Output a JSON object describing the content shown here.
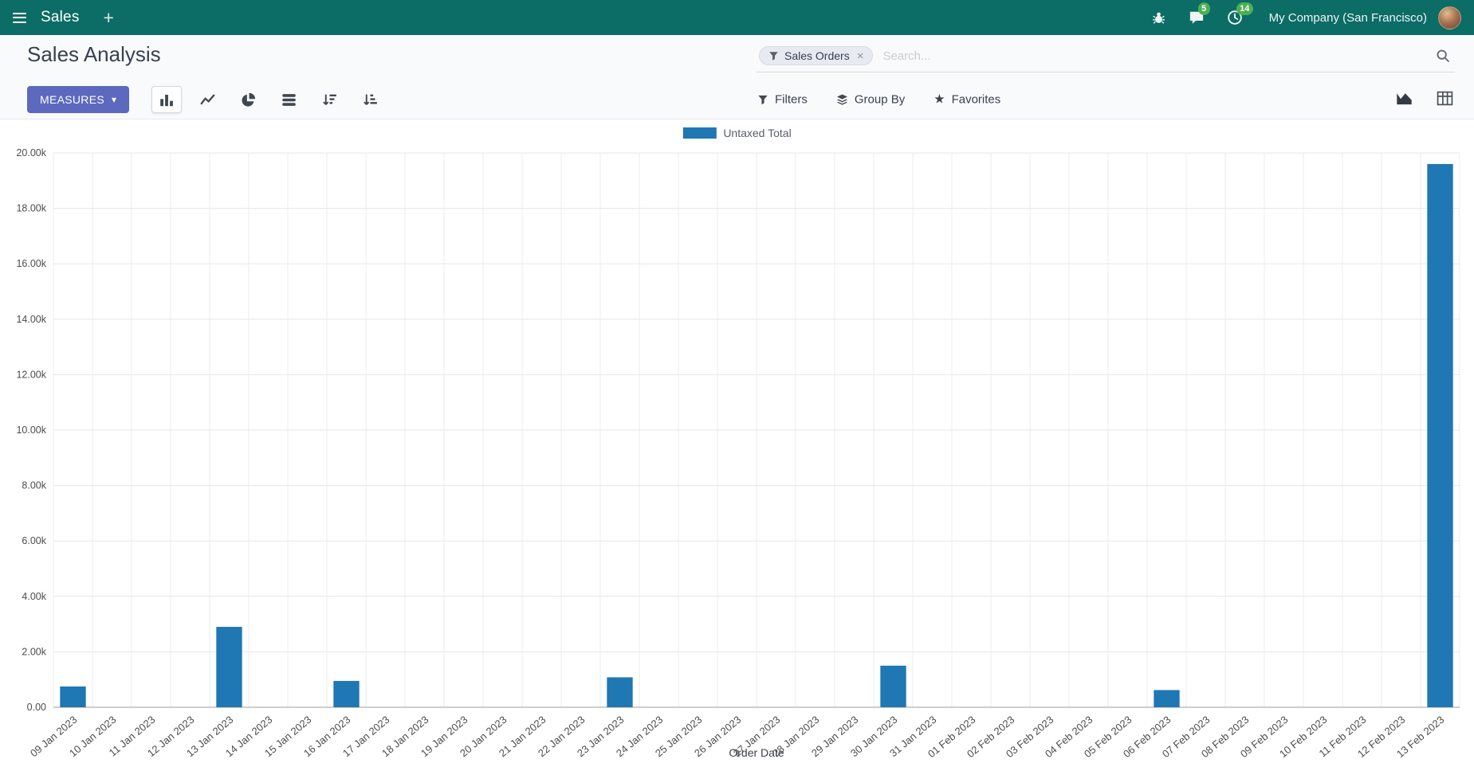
{
  "colors": {
    "navbar_bg": "#0c6c66",
    "badge_green": "#4caf50",
    "primary_button": "#5d69be",
    "bar": "#1f77b4"
  },
  "navbar": {
    "app_name": "Sales",
    "new_label": "+",
    "messages_badge": "5",
    "activities_badge": "14",
    "company": "My Company (San Francisco)"
  },
  "control_panel": {
    "title": "Sales Analysis",
    "measures_label": "MEASURES",
    "filters_label": "Filters",
    "group_by_label": "Group By",
    "favorites_label": "Favorites"
  },
  "search": {
    "facet_label": "Sales Orders",
    "placeholder": "Search...",
    "remove_glyph": "×"
  },
  "icons": {
    "caret_down": "▾",
    "star": "★"
  },
  "chart_data": {
    "type": "bar",
    "title": "",
    "xlabel": "Order Date",
    "ylabel": "",
    "ylim": [
      0,
      20000
    ],
    "grid": true,
    "legend_position": "top",
    "y_ticks": [
      "0.00",
      "2.00k",
      "4.00k",
      "6.00k",
      "8.00k",
      "10.00k",
      "12.00k",
      "14.00k",
      "16.00k",
      "18.00k",
      "20.00k"
    ],
    "categories": [
      "09 Jan 2023",
      "10 Jan 2023",
      "11 Jan 2023",
      "12 Jan 2023",
      "13 Jan 2023",
      "14 Jan 2023",
      "15 Jan 2023",
      "16 Jan 2023",
      "17 Jan 2023",
      "18 Jan 2023",
      "19 Jan 2023",
      "20 Jan 2023",
      "21 Jan 2023",
      "22 Jan 2023",
      "23 Jan 2023",
      "24 Jan 2023",
      "25 Jan 2023",
      "26 Jan 2023",
      "27 Jan 2023",
      "28 Jan 2023",
      "29 Jan 2023",
      "30 Jan 2023",
      "31 Jan 2023",
      "01 Feb 2023",
      "02 Feb 2023",
      "03 Feb 2023",
      "04 Feb 2023",
      "05 Feb 2023",
      "06 Feb 2023",
      "07 Feb 2023",
      "08 Feb 2023",
      "09 Feb 2023",
      "10 Feb 2023",
      "11 Feb 2023",
      "12 Feb 2023",
      "13 Feb 2023"
    ],
    "series": [
      {
        "name": "Untaxed Total",
        "color": "#1f77b4",
        "values": [
          750,
          0,
          0,
          0,
          2900,
          0,
          0,
          950,
          0,
          0,
          0,
          0,
          0,
          0,
          1080,
          0,
          0,
          0,
          0,
          0,
          0,
          1500,
          0,
          0,
          0,
          0,
          0,
          0,
          620,
          0,
          0,
          0,
          0,
          0,
          0,
          19600
        ]
      }
    ]
  }
}
